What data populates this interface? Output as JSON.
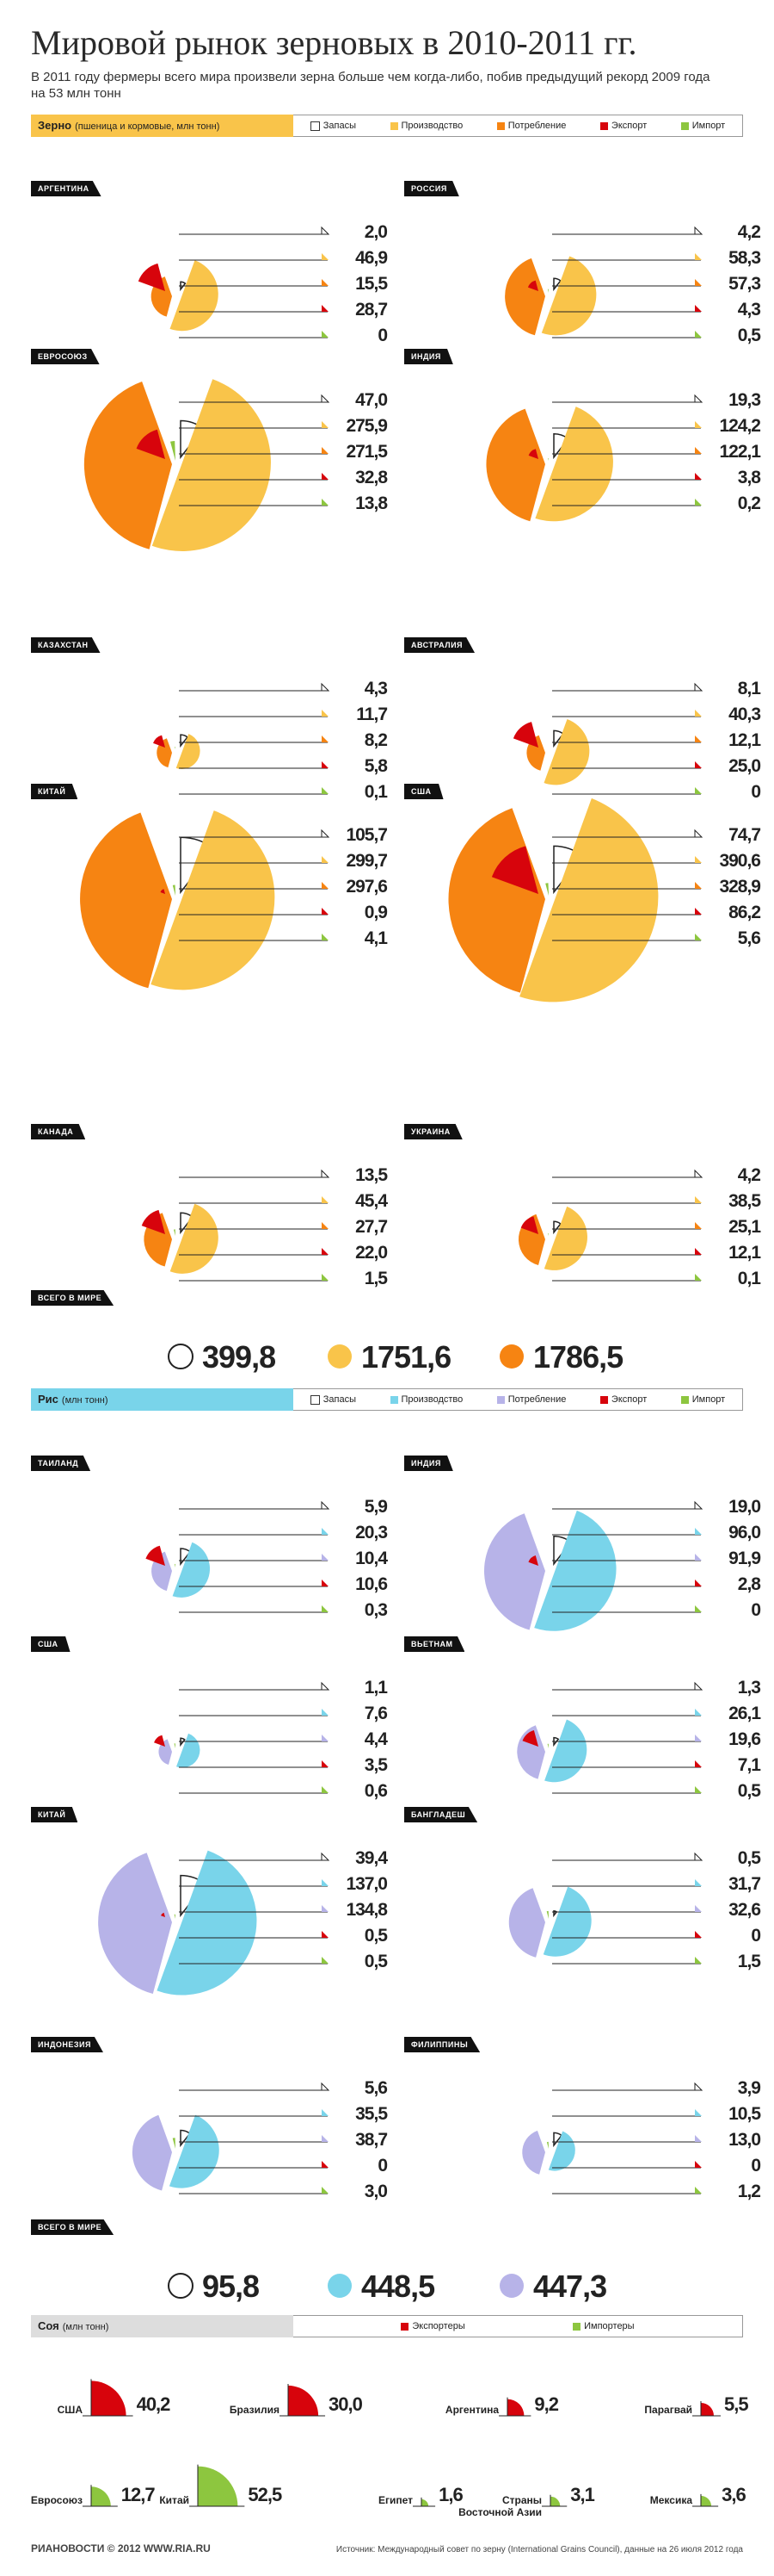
{
  "title": "Мировой рынок зерновых в 2010-2011 гг.",
  "subtitle": "В 2011 году фермеры всего мира произвели зерна больше чем когда-либо, побив предыдущий рекорд 2009 года на 53 млн тонн",
  "colors": {
    "stocks": "#ffffff",
    "production_grain": "#f9c44a",
    "consumption_grain": "#f68412",
    "exports": "#d7040c",
    "imports": "#8dc63f",
    "production_rice": "#79d4ea",
    "consumption_rice": "#b7b3e8"
  },
  "legend": [
    "Запасы",
    "Производство",
    "Потребление",
    "Экспорт",
    "Импорт"
  ],
  "grain_section": {
    "name": "Зерно",
    "note": "(пшеница и кормовые, млн тонн)"
  },
  "rice_section": {
    "name": "Рис",
    "note": "(млн тонн)"
  },
  "soy_section": {
    "name": "Соя",
    "note": "(млн тонн)",
    "legend_exporters": "Экспортеры",
    "legend_importers": "Импортеры"
  },
  "world_total_label": "ВСЕГО В МИРЕ",
  "chart_data": [
    {
      "type": "pie",
      "title": "Зерно (пшеница и кормовые, млн тонн)",
      "series_order": [
        "Запасы",
        "Производство",
        "Потребление",
        "Экспорт",
        "Импорт"
      ],
      "countries": [
        {
          "name": "АРГЕНТИНА",
          "values": [
            "2,0",
            "46,9",
            "15,5",
            "28,7",
            "0"
          ]
        },
        {
          "name": "РОССИЯ",
          "values": [
            "4,2",
            "58,3",
            "57,3",
            "4,3",
            "0,5"
          ]
        },
        {
          "name": "ЕВРОСОЮЗ",
          "values": [
            "47,0",
            "275,9",
            "271,5",
            "32,8",
            "13,8"
          ]
        },
        {
          "name": "ИНДИЯ",
          "values": [
            "19,3",
            "124,2",
            "122,1",
            "3,8",
            "0,2"
          ]
        },
        {
          "name": "КАЗАХСТАН",
          "values": [
            "4,3",
            "11,7",
            "8,2",
            "5,8",
            "0,1"
          ]
        },
        {
          "name": "АВСТРАЛИЯ",
          "values": [
            "8,1",
            "40,3",
            "12,1",
            "25,0",
            "0"
          ]
        },
        {
          "name": "КИТАЙ",
          "values": [
            "105,7",
            "299,7",
            "297,6",
            "0,9",
            "4,1"
          ]
        },
        {
          "name": "США",
          "values": [
            "74,7",
            "390,6",
            "328,9",
            "86,2",
            "5,6"
          ]
        },
        {
          "name": "КАНАДА",
          "values": [
            "13,5",
            "45,4",
            "27,7",
            "22,0",
            "1,5"
          ]
        },
        {
          "name": "УКРАИНА",
          "values": [
            "4,2",
            "38,5",
            "25,1",
            "12,1",
            "0,1"
          ]
        }
      ],
      "world_total": [
        "399,8",
        "1751,6",
        "1786,5"
      ]
    },
    {
      "type": "pie",
      "title": "Рис (млн тонн)",
      "series_order": [
        "Запасы",
        "Производство",
        "Потребление",
        "Экспорт",
        "Импорт"
      ],
      "countries": [
        {
          "name": "ТАИЛАНД",
          "values": [
            "5,9",
            "20,3",
            "10,4",
            "10,6",
            "0,3"
          ]
        },
        {
          "name": "ИНДИЯ",
          "values": [
            "19,0",
            "96,0",
            "91,9",
            "2,8",
            "0"
          ]
        },
        {
          "name": "США",
          "values": [
            "1,1",
            "7,6",
            "4,4",
            "3,5",
            "0,6"
          ]
        },
        {
          "name": "ВЬЕТНАМ",
          "values": [
            "1,3",
            "26,1",
            "19,6",
            "7,1",
            "0,5"
          ]
        },
        {
          "name": "КИТАЙ",
          "values": [
            "39,4",
            "137,0",
            "134,8",
            "0,5",
            "0,5"
          ]
        },
        {
          "name": "БАНГЛАДЕШ",
          "values": [
            "0,5",
            "31,7",
            "32,6",
            "0",
            "1,5"
          ]
        },
        {
          "name": "ИНДОНЕЗИЯ",
          "values": [
            "5,6",
            "35,5",
            "38,7",
            "0",
            "3,0"
          ]
        },
        {
          "name": "ФИЛИППИНЫ",
          "values": [
            "3,9",
            "10,5",
            "13,0",
            "0",
            "1,2"
          ]
        }
      ],
      "world_total": [
        "95,8",
        "448,5",
        "447,3"
      ]
    },
    {
      "type": "pie",
      "title": "Соя (млн тонн)",
      "series": [
        {
          "name": "США",
          "value": "40,2",
          "role": "Экспортеры"
        },
        {
          "name": "Бразилия",
          "value": "30,0",
          "role": "Экспортеры"
        },
        {
          "name": "Аргентина",
          "value": "9,2",
          "role": "Экспортеры"
        },
        {
          "name": "Парагвай",
          "value": "5,5",
          "role": "Экспортеры"
        },
        {
          "name": "Евросоюз",
          "value": "12,7",
          "role": "Импортеры"
        },
        {
          "name": "Китай",
          "value": "52,5",
          "role": "Импортеры"
        },
        {
          "name": "Египет",
          "value": "1,6",
          "role": "Импортеры"
        },
        {
          "name": "Страны Восточной Азии",
          "value": "3,1",
          "role": "Импортеры"
        },
        {
          "name": "Мексика",
          "value": "3,6",
          "role": "Импортеры"
        }
      ]
    }
  ],
  "footer": {
    "logo": "РИАНОВОСТИ © 2012 WWW.RIA.RU",
    "source": "Источник: Международный совет по зерну (International Grains Council), данные на 26 июля 2012 года"
  }
}
